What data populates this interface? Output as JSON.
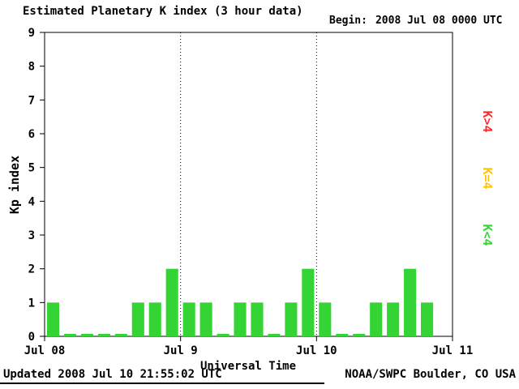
{
  "header": {
    "title": "Estimated Planetary K index (3 hour data)",
    "begin_label": "Begin:",
    "begin_value": "2008 Jul 08 0000 UTC"
  },
  "chart_data": {
    "type": "bar",
    "title": "Estimated Planetary K index (3 hour data)",
    "xlabel": "Universal Time",
    "ylabel": "Kp index",
    "ylim": [
      0,
      9
    ],
    "y_ticks": [
      0,
      1,
      2,
      3,
      4,
      5,
      6,
      7,
      8,
      9
    ],
    "x_ticks": [
      "Jul 08",
      "Jul 9",
      "Jul 10",
      "Jul 11"
    ],
    "interval_hours": 3,
    "slots_per_day": 8,
    "grid": "dotted vertical lines at day boundaries",
    "legend_position": "right, rotated 90deg",
    "series": [
      {
        "name": "Jul 08",
        "values": [
          1,
          0,
          0,
          0,
          0,
          1,
          1,
          2
        ]
      },
      {
        "name": "Jul 09",
        "values": [
          1,
          1,
          0,
          1,
          1,
          0,
          1,
          2
        ]
      },
      {
        "name": "Jul 10",
        "values": [
          1,
          0,
          0,
          1,
          1,
          2,
          1
        ]
      }
    ],
    "colors": {
      "k_lt_4": "#33D433",
      "k_eq_4": "#FFC400",
      "k_gt_4": "#FF2A2A",
      "axis": "#000000",
      "background": "#FFFFFF"
    },
    "legend": [
      {
        "id": "gt",
        "label": "K>4",
        "color": "#FF2A2A"
      },
      {
        "id": "eq",
        "label": "K=4",
        "color": "#FFC400"
      },
      {
        "id": "lt",
        "label": "K<4",
        "color": "#33D433"
      }
    ]
  },
  "footer": {
    "updated": "Updated 2008 Jul 10 21:55:02 UTC",
    "source": "NOAA/SWPC Boulder, CO USA"
  }
}
